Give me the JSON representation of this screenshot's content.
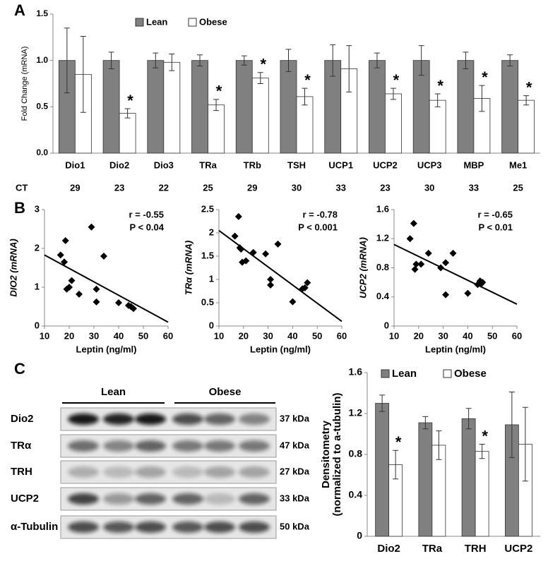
{
  "panel_labels": [
    "A",
    "B",
    "C"
  ],
  "blot": {
    "groups": [
      "Lean",
      "Obese"
    ],
    "rows": [
      {
        "label": "Dio2",
        "size": "37 kDa"
      },
      {
        "label": "TRα",
        "size": "47 kDa"
      },
      {
        "label": "TRH",
        "size": "27 kDa"
      },
      {
        "label": "UCP2",
        "size": "33 kDa"
      },
      {
        "label": "α-Tubulin",
        "size": "50 kDa"
      }
    ]
  },
  "chart_data": [
    {
      "type": "bar",
      "ylabel": "Fold Change (mRNA)",
      "categories": [
        "Dio1",
        "Dio2",
        "Dio3",
        "TRa",
        "TRb",
        "TSH",
        "UCP1",
        "UCP2",
        "UCP3",
        "MBP",
        "Me1"
      ],
      "series": [
        {
          "name": "Lean",
          "color": "#808080",
          "values": [
            1,
            1,
            1,
            1,
            1,
            1,
            1,
            1,
            1,
            1,
            1
          ],
          "errors": [
            0.35,
            0.09,
            0.08,
            0.06,
            0.05,
            0.12,
            0.17,
            0.08,
            0.16,
            0.09,
            0.06
          ]
        },
        {
          "name": "Obese",
          "color": "#ffffff",
          "values": [
            0.85,
            0.43,
            0.98,
            0.52,
            0.81,
            0.61,
            0.91,
            0.64,
            0.57,
            0.59,
            0.57
          ],
          "errors": [
            0.41,
            0.05,
            0.09,
            0.06,
            0.06,
            0.09,
            0.25,
            0.06,
            0.07,
            0.14,
            0.05
          ]
        }
      ],
      "significance": [
        null,
        "*",
        null,
        "*",
        "*",
        "*",
        null,
        "*",
        "*",
        "*",
        "*"
      ],
      "row_label": "CT",
      "row_values": [
        29,
        23,
        22,
        25,
        29,
        30,
        33,
        23,
        30,
        33,
        25
      ],
      "ylim": [
        0,
        1.5
      ],
      "yticks": [
        {
          "value": 0,
          "label": "0.0"
        },
        {
          "value": 0.5,
          "label": "0.5"
        },
        {
          "value": 1,
          "label": "1.0"
        },
        {
          "value": 1.5,
          "label": "1.5"
        }
      ],
      "legend": "top-left"
    },
    {
      "type": "scatter",
      "xlabel": "Leptin (ng/ml)",
      "ylabel": "DIO2 (mRNA)",
      "color": "#000000",
      "x": [
        16.5,
        18,
        18.5,
        19,
        20,
        21,
        24,
        29,
        31,
        31,
        34,
        40,
        44,
        45,
        46
      ],
      "values": [
        1.83,
        1.65,
        2.2,
        0.95,
        1,
        1.17,
        0.82,
        2.55,
        0.95,
        0.62,
        1.8,
        0.6,
        0.53,
        0.5,
        0.45
      ],
      "trend_x": [
        10,
        60
      ],
      "trend_y": [
        1.83,
        0.1
      ],
      "annotations": [
        "r = -0.55",
        "P < 0.04"
      ],
      "xlim": [
        10,
        60
      ],
      "xticks": [
        10,
        20,
        30,
        40,
        50,
        60
      ],
      "ylim": [
        0,
        3
      ],
      "yticks": [
        0,
        1,
        2,
        3
      ]
    },
    {
      "type": "scatter",
      "xlabel": "Leptin (ng/ml)",
      "ylabel": "TRα (mRNA)",
      "color": "#000000",
      "x": [
        16.5,
        18,
        18.5,
        19,
        19.5,
        21,
        24,
        29,
        31,
        31,
        34,
        40,
        44,
        45,
        46
      ],
      "values": [
        1.93,
        2.35,
        1.68,
        1.65,
        1.37,
        1.4,
        1.58,
        1.55,
        1,
        0.88,
        1.76,
        0.52,
        0.8,
        0.82,
        0.93
      ],
      "trend_x": [
        10,
        60
      ],
      "trend_y": [
        2.05,
        0.1
      ],
      "annotations": [
        "r = -0.78",
        "P < 0.001"
      ],
      "xlim": [
        10,
        60
      ],
      "xticks": [
        10,
        20,
        30,
        40,
        50,
        60
      ],
      "ylim": [
        0,
        2.5
      ],
      "yticks": [
        0,
        0.5,
        1,
        1.5,
        2,
        2.5
      ]
    },
    {
      "type": "scatter",
      "xlabel": "Leptin (ng/ml)",
      "ylabel": "UCP2 (mRNA)",
      "color": "#000000",
      "x": [
        16.5,
        18,
        18.5,
        19,
        21,
        24,
        29,
        31,
        31,
        34,
        40,
        44,
        45,
        45.5,
        46
      ],
      "values": [
        1.2,
        1.41,
        0.78,
        0.85,
        0.85,
        1,
        0.8,
        0.43,
        0.87,
        1,
        0.45,
        0.57,
        0.62,
        0.58,
        0.6
      ],
      "trend_x": [
        10,
        60
      ],
      "trend_y": [
        1.12,
        0.3
      ],
      "annotations": [
        "r = -0.65",
        "P < 0.01"
      ],
      "xlim": [
        10,
        60
      ],
      "xticks": [
        10,
        20,
        30,
        40,
        50,
        60
      ],
      "ylim": [
        0,
        1.6
      ],
      "yticks": [
        0,
        0.4,
        0.8,
        1.2,
        1.6
      ]
    },
    {
      "type": "bar",
      "ylabel": [
        "Densitometry",
        "(normalized to a-tubulin)"
      ],
      "categories": [
        "Dio2",
        "TRa",
        "TRH",
        "UCP2"
      ],
      "series": [
        {
          "name": "Lean",
          "color": "#808080",
          "values": [
            1.3,
            1.11,
            1.15,
            1.09
          ],
          "errors": [
            0.08,
            0.06,
            0.1,
            0.32
          ]
        },
        {
          "name": "Obese",
          "color": "#ffffff",
          "values": [
            0.7,
            0.89,
            0.83,
            0.9
          ],
          "errors": [
            0.14,
            0.14,
            0.07,
            0.36
          ]
        }
      ],
      "significance": [
        "*",
        null,
        "*",
        null
      ],
      "ylim": [
        0,
        1.6
      ],
      "yticks": [
        0,
        0.4,
        0.8,
        1.2,
        1.6
      ],
      "legend": "top-left"
    }
  ]
}
